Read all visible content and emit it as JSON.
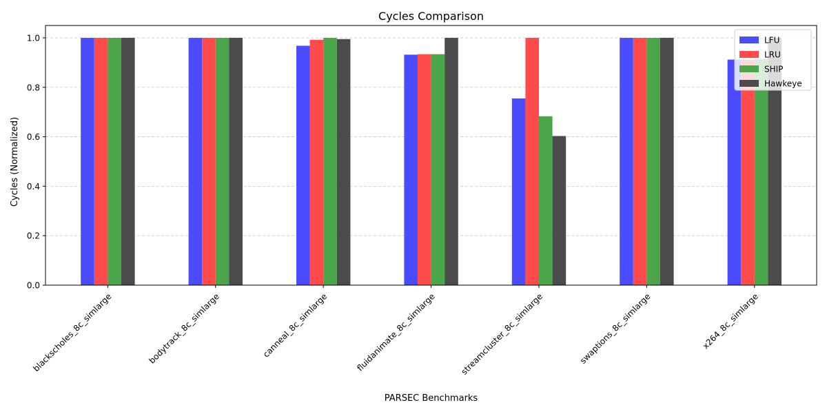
{
  "chart_data": {
    "type": "bar",
    "title": "Cycles Comparison",
    "xlabel": "PARSEC Benchmarks",
    "ylabel": "Cycles (Normalized)",
    "ylim": [
      0,
      1.05
    ],
    "yticks": [
      0.0,
      0.2,
      0.4,
      0.6,
      0.8,
      1.0
    ],
    "ytick_labels": [
      "0.0",
      "0.2",
      "0.4",
      "0.6",
      "0.8",
      "1.0"
    ],
    "grid": "y-dashed",
    "legend_position": "top-right",
    "categories": [
      "blackscholes_8c_simlarge",
      "bodytrack_8c_simlarge",
      "canneal_8c_simlarge",
      "fluidanimate_8c_simlarge",
      "streamcluster_8c_simlarge",
      "swaptions_8c_simlarge",
      "x264_8c_simlarge"
    ],
    "series": [
      {
        "name": "LFU",
        "color": "#4b4bff",
        "values": [
          1.0,
          1.0,
          0.968,
          0.932,
          0.755,
          1.0,
          0.912
        ]
      },
      {
        "name": "LRU",
        "color": "#ff4b4b",
        "values": [
          1.0,
          1.0,
          0.992,
          0.934,
          1.0,
          1.0,
          0.912
        ]
      },
      {
        "name": "SHIP",
        "color": "#4ba64b",
        "values": [
          1.0,
          1.0,
          1.0,
          0.934,
          0.683,
          1.0,
          0.915
        ]
      },
      {
        "name": "Hawkeye",
        "color": "#4b4b4b",
        "values": [
          1.0,
          1.0,
          0.995,
          1.0,
          0.603,
          1.0,
          1.0
        ]
      }
    ]
  }
}
